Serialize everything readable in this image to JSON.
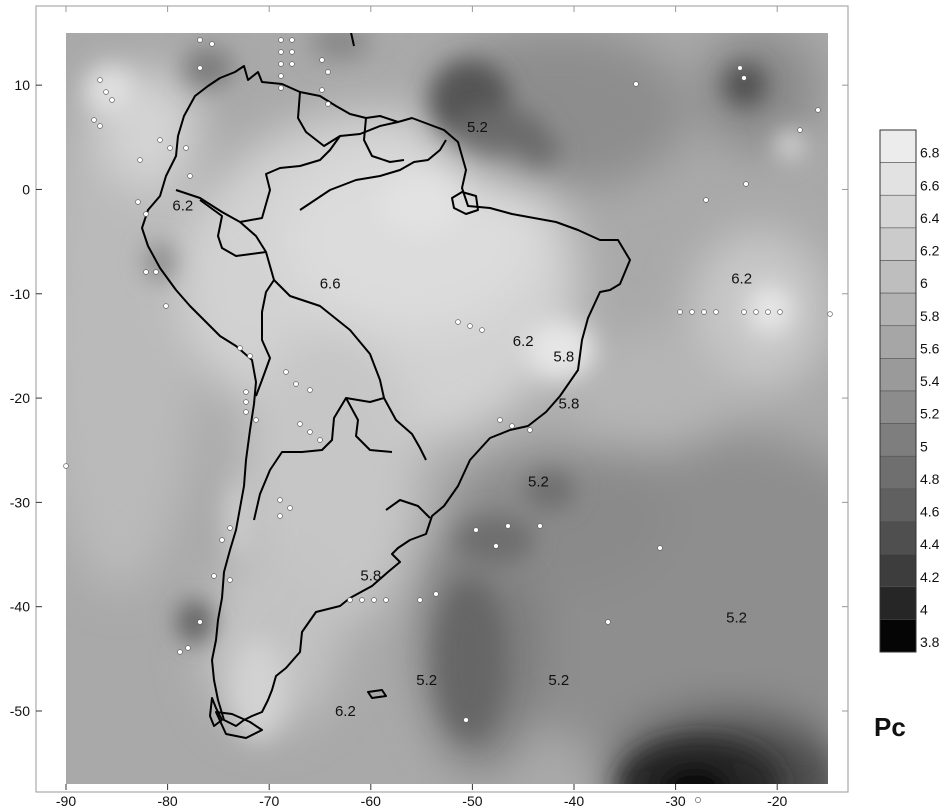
{
  "map": {
    "variable": "Pc",
    "longitude_range": [
      -90,
      -15
    ],
    "latitude_range": [
      -57,
      15
    ],
    "x_ticks": [
      "-90",
      "-80",
      "-70",
      "-60",
      "-50",
      "-40",
      "-30",
      "-20"
    ],
    "y_ticks": [
      "10",
      "0",
      "-10",
      "-20",
      "-30",
      "-40",
      "-50"
    ],
    "contour_labels": [
      {
        "text": "5.2",
        "lon": -49.5,
        "lat": 5.5
      },
      {
        "text": "6.2",
        "lon": -78.5,
        "lat": -2
      },
      {
        "text": "6.6",
        "lon": -64,
        "lat": -9.5
      },
      {
        "text": "6.2",
        "lon": -45,
        "lat": -15
      },
      {
        "text": "5.8",
        "lon": -41,
        "lat": -16.5
      },
      {
        "text": "5.8",
        "lon": -40.5,
        "lat": -21
      },
      {
        "text": "6.2",
        "lon": -23.5,
        "lat": -9
      },
      {
        "text": "5.2",
        "lon": -43.5,
        "lat": -28.5
      },
      {
        "text": "5.8",
        "lon": -60,
        "lat": -37.5
      },
      {
        "text": "5.2",
        "lon": -54.5,
        "lat": -47.5
      },
      {
        "text": "5.2",
        "lon": -41.5,
        "lat": -47.5
      },
      {
        "text": "6.2",
        "lon": -62.5,
        "lat": -50.5
      },
      {
        "text": "5.2",
        "lon": -24,
        "lat": -41.5
      }
    ],
    "colors": {
      "coastline": "#000000",
      "station": "#ffffff",
      "station_edge": "#666666"
    }
  },
  "legend": {
    "title": "Pc",
    "levels": [
      "6.8",
      "6.6",
      "6.4",
      "6.2",
      "6",
      "5.8",
      "5.6",
      "5.4",
      "5.2",
      "5",
      "4.8",
      "4.6",
      "4.4",
      "4.2",
      "4",
      "3.8"
    ],
    "colors": [
      "#ececec",
      "#e2e2e2",
      "#d6d6d6",
      "#cbcbcb",
      "#bebebe",
      "#b2b2b2",
      "#a6a6a6",
      "#9a9a9a",
      "#8c8c8c",
      "#7e7e7e",
      "#6f6f6f",
      "#606060",
      "#4f4f4f",
      "#3d3d3d",
      "#262626",
      "#050505"
    ]
  }
}
